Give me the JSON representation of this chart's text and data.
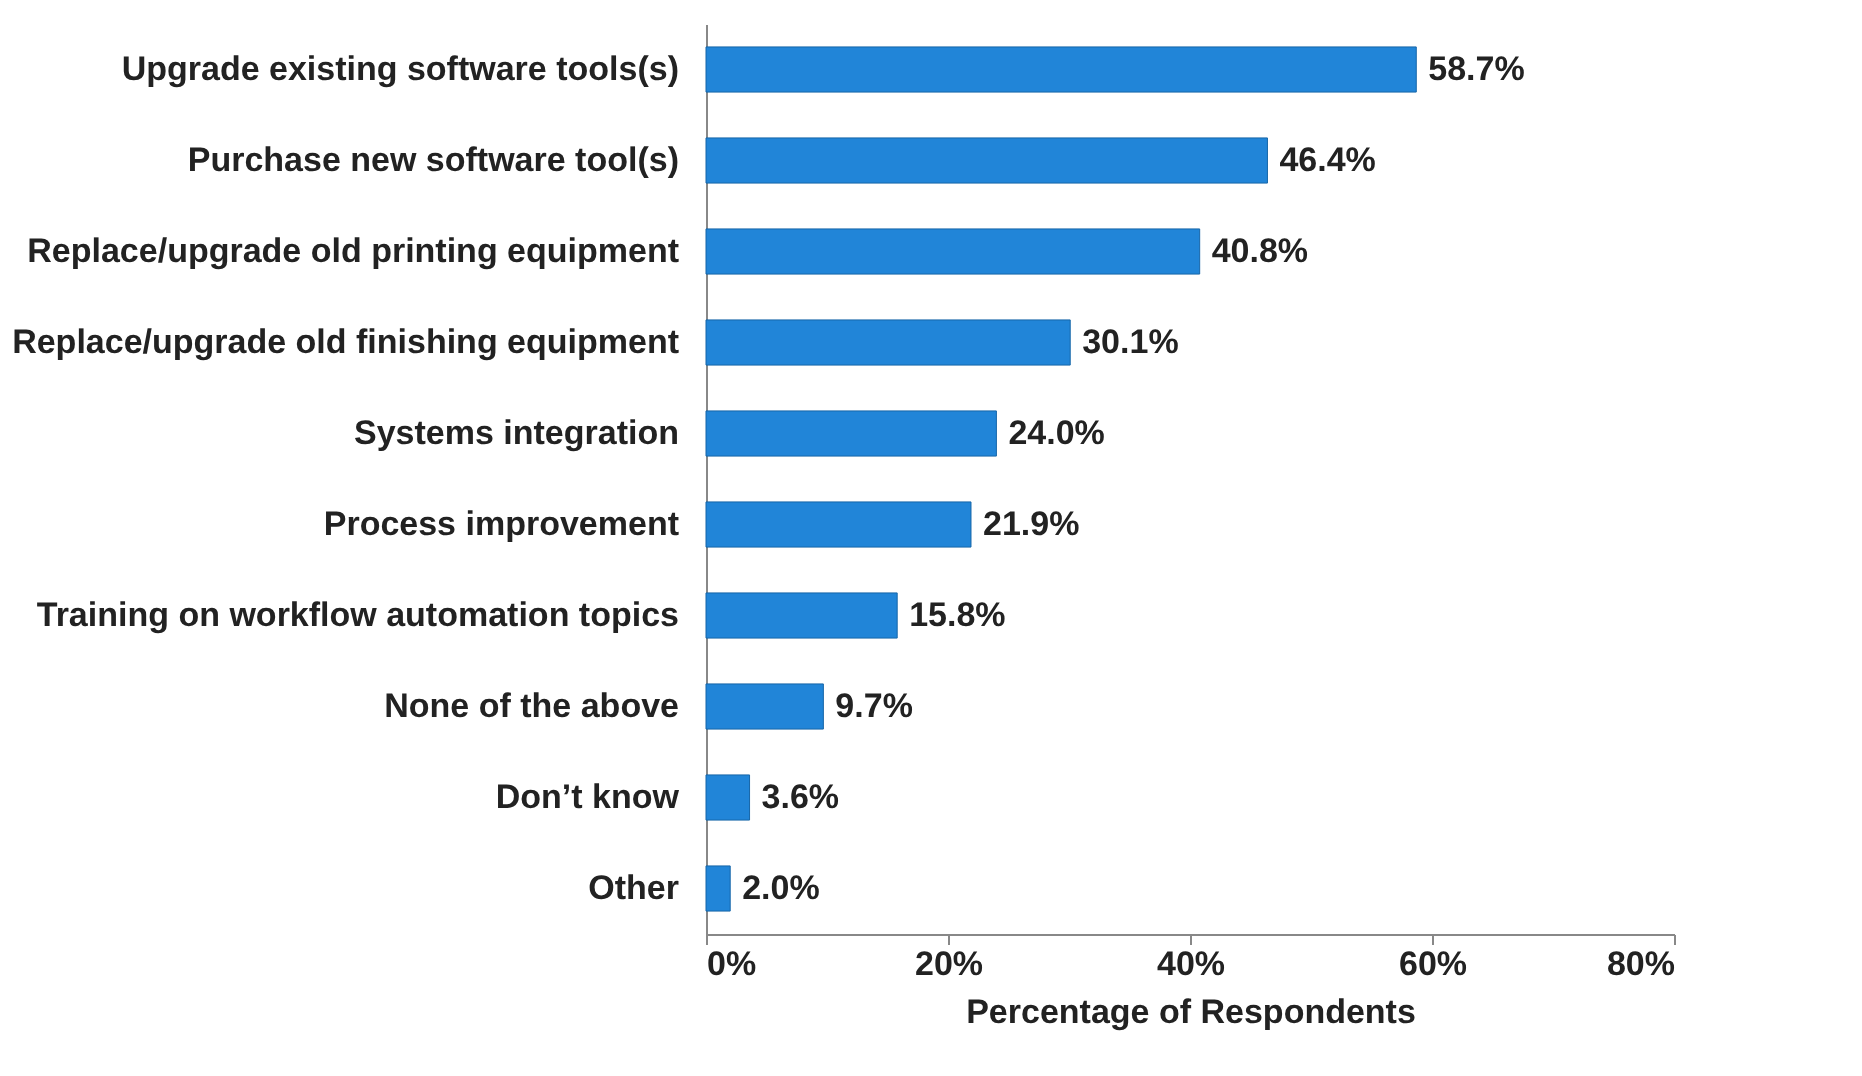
{
  "chart_data": {
    "type": "bar",
    "orientation": "horizontal",
    "xlabel": "Percentage of Respondents",
    "categories": [
      "Upgrade existing software tools(s)",
      "Purchase new software tool(s)",
      "Replace/upgrade old printing equipment",
      "Replace/upgrade old finishing equipment",
      "Systems integration",
      "Process improvement",
      "Training on workflow automation topics",
      "None of the above",
      "Don’t know",
      "Other"
    ],
    "values": [
      58.7,
      46.4,
      40.8,
      30.1,
      24.0,
      21.9,
      15.8,
      9.7,
      3.6,
      2.0
    ],
    "value_labels": [
      "58.7%",
      "46.4%",
      "40.8%",
      "30.1%",
      "24.0%",
      "21.9%",
      "15.8%",
      "9.7%",
      "3.6%",
      "2.0%"
    ],
    "color": "#2185d8",
    "xlim": [
      0,
      80
    ],
    "xticks": [
      {
        "value": 0,
        "label": "0%"
      },
      {
        "value": 20,
        "label": "20%"
      },
      {
        "value": 40,
        "label": "40%"
      },
      {
        "value": 60,
        "label": "60%"
      },
      {
        "value": 80,
        "label": "80%"
      }
    ],
    "grid": false
  }
}
